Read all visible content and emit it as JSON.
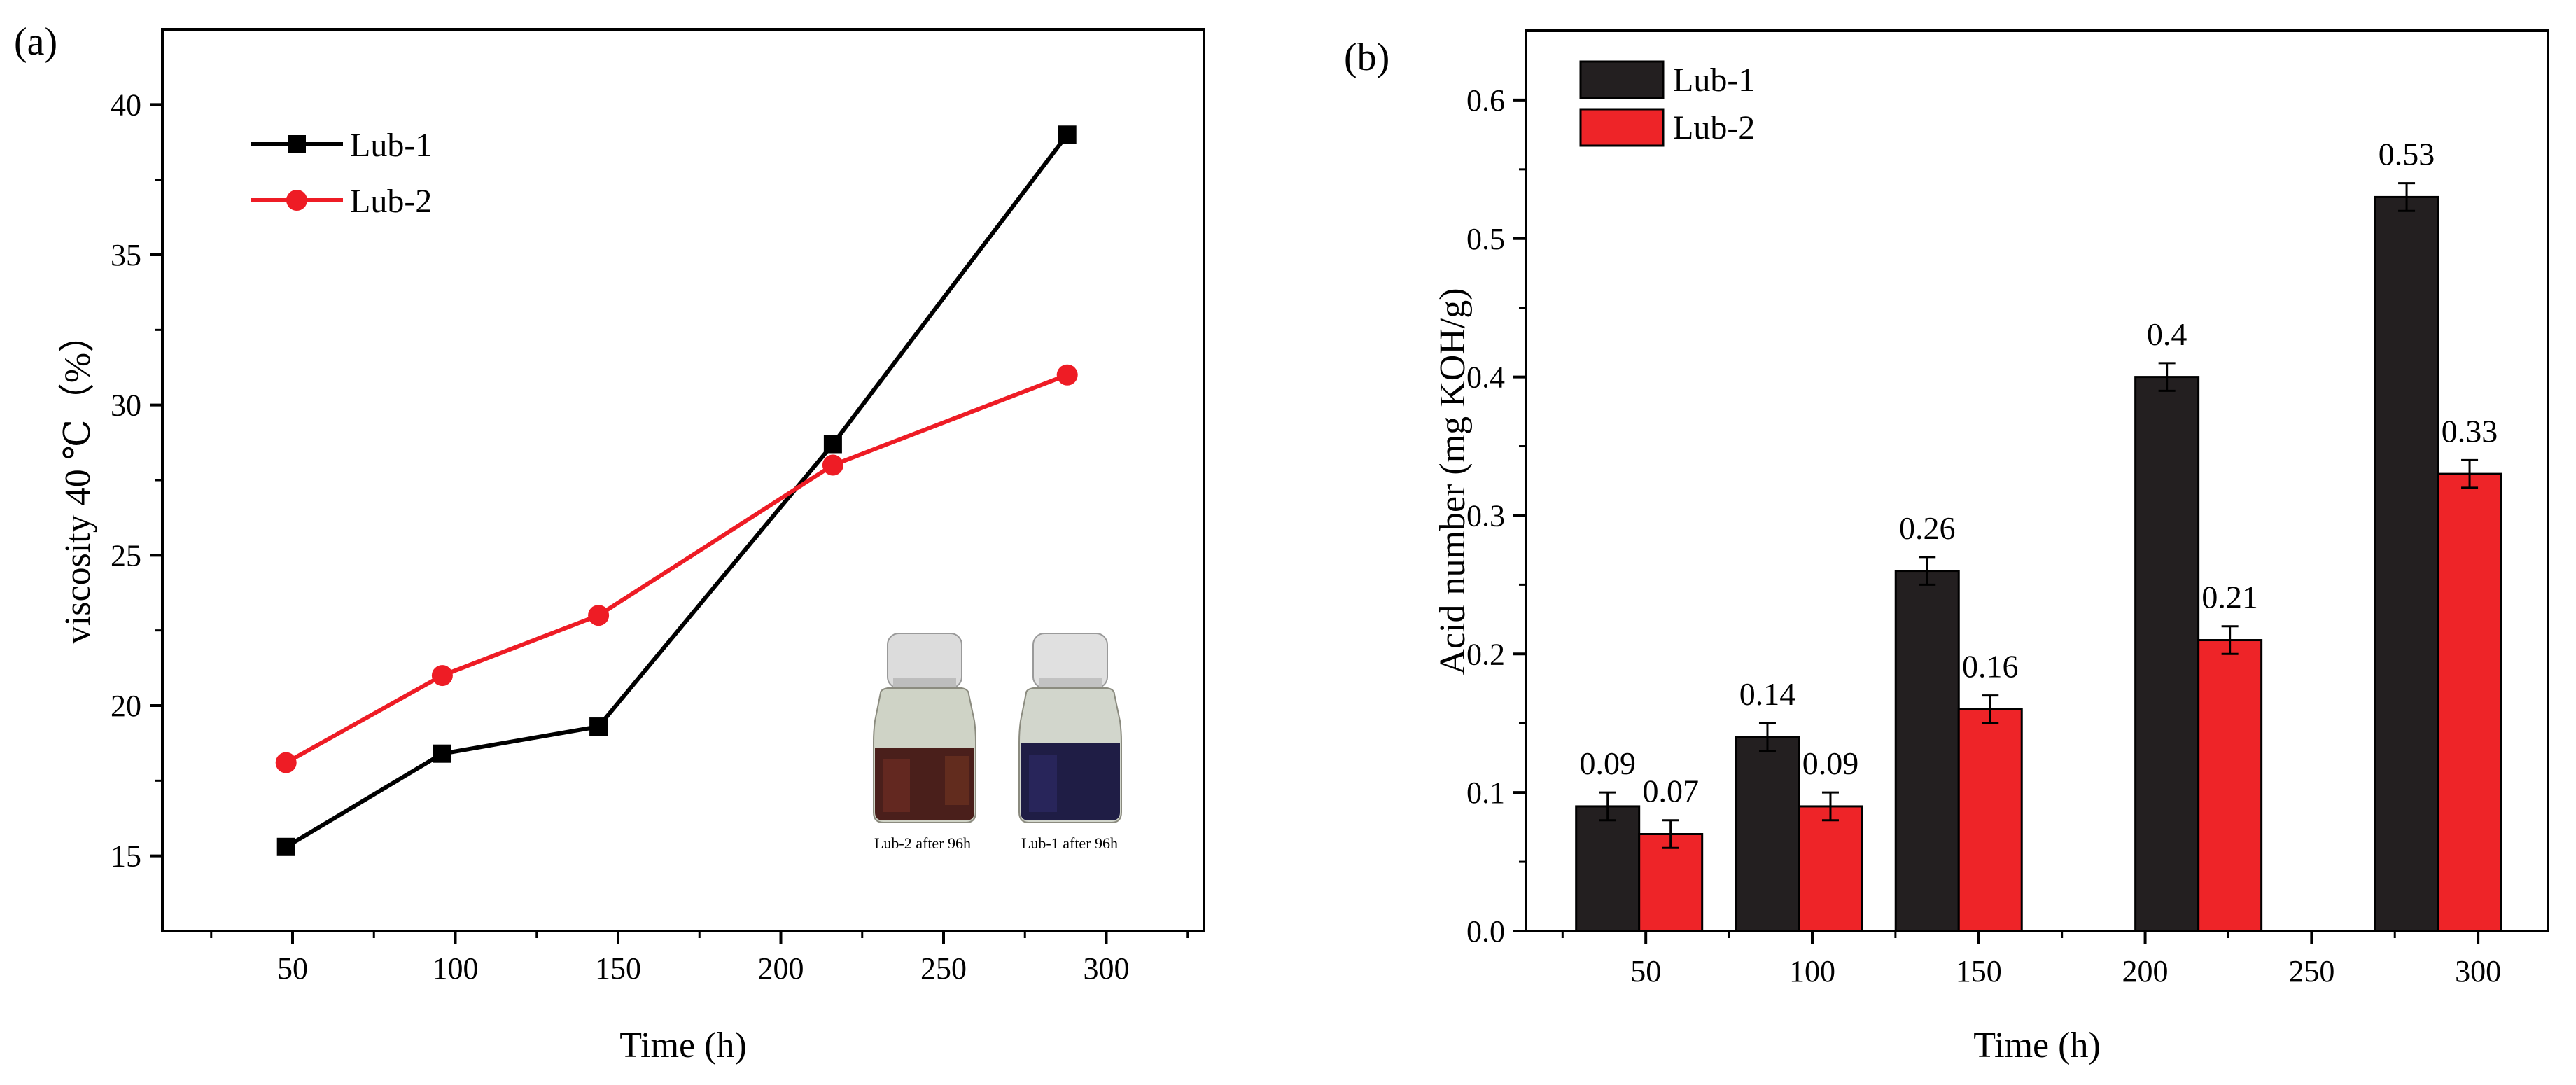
{
  "panels": {
    "a": {
      "label": "(a)"
    },
    "b": {
      "label": "(b)"
    }
  },
  "inset": {
    "left_caption": "Lub-2 after 96h",
    "right_caption": "Lub-1 after 96h"
  },
  "chart_data": [
    {
      "type": "line",
      "panel": "(a)",
      "title": "",
      "xlabel": "Time (h)",
      "ylabel": "viscosity 40 ℃（%）",
      "xlim": [
        10,
        330
      ],
      "ylim": [
        12.5,
        42.5
      ],
      "xticks": [
        50,
        100,
        150,
        200,
        250,
        300
      ],
      "yticks": [
        15,
        20,
        25,
        30,
        35,
        40
      ],
      "legend_position": "top-left",
      "series": [
        {
          "name": "Lub-1",
          "color": "#000000",
          "marker": "square",
          "x": [
            48,
            96,
            144,
            216,
            288
          ],
          "y": [
            15.3,
            18.4,
            19.3,
            28.7,
            39.0
          ]
        },
        {
          "name": "Lub-2",
          "color": "#ee1c25",
          "marker": "circle",
          "x": [
            48,
            96,
            144,
            216,
            288
          ],
          "y": [
            18.1,
            21.0,
            23.0,
            28.0,
            31.0
          ]
        }
      ]
    },
    {
      "type": "bar",
      "panel": "(b)",
      "title": "",
      "xlabel": "Time (h)",
      "ylabel": "Acid number (mg KOH/g)",
      "xlim": [
        14,
        321
      ],
      "ylim": [
        0,
        0.65
      ],
      "xticks": [
        50,
        100,
        150,
        200,
        250,
        300
      ],
      "yticks": [
        0.0,
        0.1,
        0.2,
        0.3,
        0.4,
        0.5,
        0.6
      ],
      "legend_position": "top-left",
      "series": [
        {
          "name": "Lub-1",
          "color": "#231f20",
          "x": [
            48,
            96,
            144,
            216,
            288
          ],
          "values": [
            0.09,
            0.14,
            0.26,
            0.4,
            0.53
          ],
          "errors": [
            0.01,
            0.01,
            0.01,
            0.01,
            0.01
          ],
          "labels": [
            "0.09",
            "0.14",
            "0.26",
            "0.4",
            "0.53"
          ]
        },
        {
          "name": "Lub-2",
          "color": "#ee2428",
          "x": [
            48,
            96,
            144,
            216,
            288
          ],
          "values": [
            0.07,
            0.09,
            0.16,
            0.21,
            0.33
          ],
          "errors": [
            0.01,
            0.01,
            0.01,
            0.01,
            0.01
          ],
          "labels": [
            "0.07",
            "0.09",
            "0.16",
            "0.21",
            "0.33"
          ]
        }
      ]
    }
  ]
}
